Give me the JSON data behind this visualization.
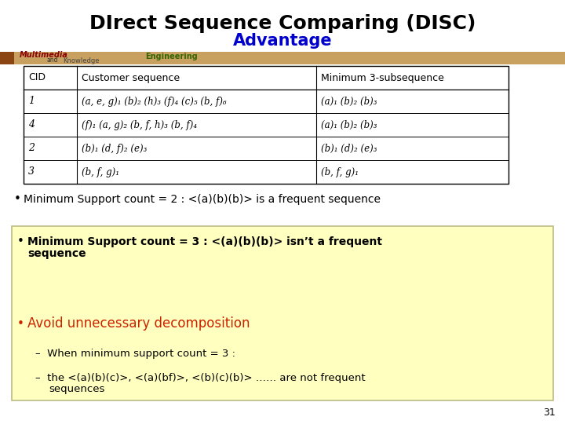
{
  "title": "DIrect Sequence Comparing (DISC)",
  "subtitle": "Advantage",
  "title_color": "#000000",
  "subtitle_color": "#0000CC",
  "bg_color": "#FFFFFF",
  "logo_bar_color": "#C8A060",
  "table_headers": [
    "CID",
    "Customer sequence",
    "Minimum 3-subsequence"
  ],
  "table_rows": [
    [
      "1",
      "(a, e, g)₁ (b)₂ (h)₃ (f)₄ (c)₅ (b, f)₆",
      "(a)₁ (b)₂ (b)₃"
    ],
    [
      "4",
      "(f)₁ (a, g)₂ (b, f, h)₃ (b, f)₄",
      "(a)₁ (b)₂ (b)₃"
    ],
    [
      "2",
      "(b)₁ (d, f)₂ (e)₃",
      "(b)₁ (d)₂ (e)₃"
    ],
    [
      "3",
      "(b, f, g)₁",
      "(b, f, g)₁"
    ]
  ],
  "bullet1": "Minimum Support count = 2 : <(a)(b)(b)> is a frequent sequence",
  "bullet2_line1": "Minimum Support count = 3 : <(a)(b)(b)> isn’t a frequent",
  "bullet2_line2": "sequence",
  "bullet3_color": "#CC2200",
  "bullet3": "Avoid unnecessary decomposition",
  "sub_bullet1": "When minimum support count = 3 :",
  "sub_bullet2a": "the <(a)(b)(c)>, <(a)(bf)>, <(b)(c)(b)> …… are not frequent",
  "sub_bullet2b": "sequences",
  "yellow_box_color": "#FFFFC0",
  "yellow_box_border": "#BBBB88",
  "page_number": "31"
}
